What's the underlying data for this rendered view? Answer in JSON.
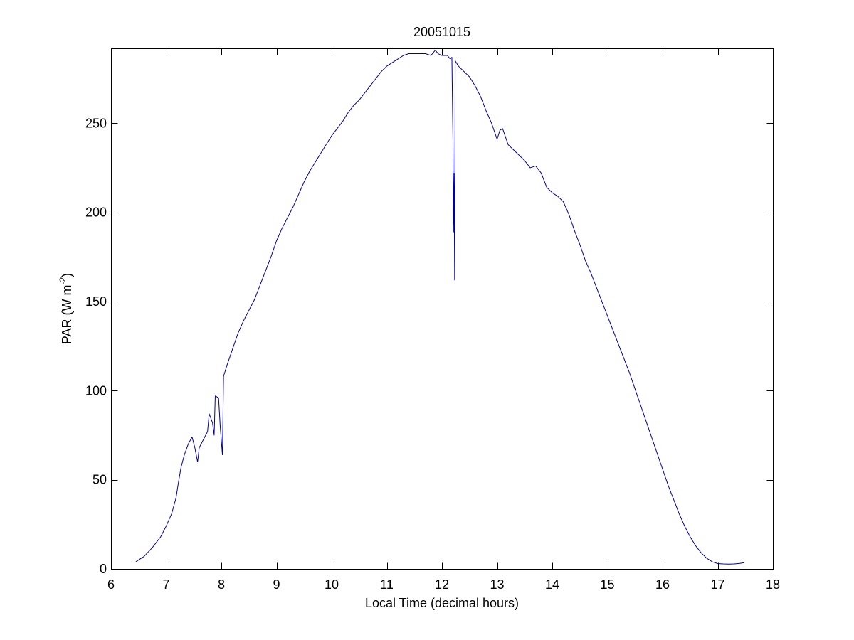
{
  "chart_data": {
    "type": "line",
    "title": "20051015",
    "xlabel": "Local Time (decimal hours)",
    "ylabel": {
      "text": "PAR (W m",
      "superscript": "-2",
      "suffix": ")"
    },
    "xlim": [
      6,
      18
    ],
    "ylim": [
      0,
      292
    ],
    "xticks": [
      6,
      7,
      8,
      9,
      10,
      11,
      12,
      13,
      14,
      15,
      16,
      17,
      18
    ],
    "yticks": [
      0,
      50,
      100,
      150,
      200,
      250
    ],
    "grid": false,
    "box": true,
    "series": [
      {
        "color": "#0000a0",
        "points": [
          [
            6.45,
            4
          ],
          [
            6.6,
            7
          ],
          [
            6.75,
            12
          ],
          [
            6.9,
            18
          ],
          [
            7.0,
            24
          ],
          [
            7.1,
            31
          ],
          [
            7.18,
            40
          ],
          [
            7.22,
            48
          ],
          [
            7.27,
            57
          ],
          [
            7.33,
            64
          ],
          [
            7.4,
            70
          ],
          [
            7.47,
            74
          ],
          [
            7.52,
            68
          ],
          [
            7.57,
            60
          ],
          [
            7.6,
            68
          ],
          [
            7.65,
            71
          ],
          [
            7.7,
            74
          ],
          [
            7.75,
            77
          ],
          [
            7.78,
            87
          ],
          [
            7.84,
            82
          ],
          [
            7.87,
            75
          ],
          [
            7.89,
            97
          ],
          [
            7.95,
            96
          ],
          [
            7.98,
            80
          ],
          [
            8.02,
            64
          ],
          [
            8.04,
            108
          ],
          [
            8.1,
            114
          ],
          [
            8.2,
            123
          ],
          [
            8.3,
            132
          ],
          [
            8.4,
            139
          ],
          [
            8.5,
            145
          ],
          [
            8.6,
            151
          ],
          [
            8.7,
            159
          ],
          [
            8.8,
            167
          ],
          [
            8.9,
            175
          ],
          [
            9.0,
            184
          ],
          [
            9.1,
            191
          ],
          [
            9.2,
            197
          ],
          [
            9.3,
            203
          ],
          [
            9.4,
            210
          ],
          [
            9.5,
            217
          ],
          [
            9.6,
            223
          ],
          [
            9.7,
            228
          ],
          [
            9.8,
            233
          ],
          [
            9.9,
            238
          ],
          [
            10.0,
            243
          ],
          [
            10.1,
            247
          ],
          [
            10.2,
            251
          ],
          [
            10.3,
            256
          ],
          [
            10.4,
            260
          ],
          [
            10.5,
            263
          ],
          [
            10.6,
            267
          ],
          [
            10.7,
            271
          ],
          [
            10.8,
            275
          ],
          [
            10.9,
            279
          ],
          [
            11.0,
            282
          ],
          [
            11.1,
            284
          ],
          [
            11.2,
            286
          ],
          [
            11.3,
            288
          ],
          [
            11.4,
            289
          ],
          [
            11.5,
            289
          ],
          [
            11.6,
            289
          ],
          [
            11.7,
            289
          ],
          [
            11.8,
            288
          ],
          [
            11.88,
            291
          ],
          [
            11.93,
            289
          ],
          [
            12.0,
            288
          ],
          [
            12.1,
            288
          ],
          [
            12.15,
            286
          ],
          [
            12.18,
            287
          ],
          [
            12.2,
            240
          ],
          [
            12.21,
            189
          ],
          [
            12.22,
            222
          ],
          [
            12.23,
            162
          ],
          [
            12.24,
            285
          ],
          [
            12.3,
            282
          ],
          [
            12.4,
            279
          ],
          [
            12.5,
            276
          ],
          [
            12.6,
            271
          ],
          [
            12.7,
            265
          ],
          [
            12.8,
            257
          ],
          [
            12.9,
            250
          ],
          [
            13.0,
            241
          ],
          [
            13.05,
            246
          ],
          [
            13.1,
            247
          ],
          [
            13.2,
            238
          ],
          [
            13.3,
            235
          ],
          [
            13.4,
            232
          ],
          [
            13.5,
            229
          ],
          [
            13.6,
            225
          ],
          [
            13.7,
            226
          ],
          [
            13.8,
            222
          ],
          [
            13.9,
            214
          ],
          [
            14.0,
            211
          ],
          [
            14.1,
            209
          ],
          [
            14.2,
            206
          ],
          [
            14.3,
            199
          ],
          [
            14.4,
            190
          ],
          [
            14.5,
            182
          ],
          [
            14.6,
            173
          ],
          [
            14.7,
            166
          ],
          [
            14.8,
            158
          ],
          [
            14.9,
            150
          ],
          [
            15.0,
            142
          ],
          [
            15.1,
            134
          ],
          [
            15.2,
            126
          ],
          [
            15.3,
            118
          ],
          [
            15.4,
            110
          ],
          [
            15.5,
            101
          ],
          [
            15.6,
            92
          ],
          [
            15.7,
            83
          ],
          [
            15.8,
            74
          ],
          [
            15.9,
            65
          ],
          [
            16.0,
            56
          ],
          [
            16.1,
            47
          ],
          [
            16.2,
            39
          ],
          [
            16.3,
            31
          ],
          [
            16.4,
            24
          ],
          [
            16.5,
            18
          ],
          [
            16.6,
            13
          ],
          [
            16.7,
            9
          ],
          [
            16.8,
            6
          ],
          [
            16.9,
            4
          ],
          [
            17.0,
            3
          ],
          [
            17.1,
            2.8
          ],
          [
            17.2,
            2.7
          ],
          [
            17.3,
            2.8
          ],
          [
            17.4,
            3.1
          ],
          [
            17.48,
            3.5
          ]
        ]
      }
    ]
  }
}
